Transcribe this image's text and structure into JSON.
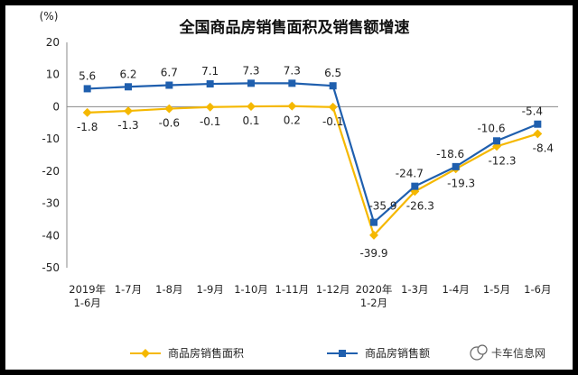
{
  "chart_data": {
    "type": "line",
    "title": "全国商品房销售面积及销售额增速",
    "ylabel": "(%)",
    "xlabel": "",
    "ylim": [
      -50,
      20
    ],
    "yticks": [
      20,
      10,
      0,
      -10,
      -20,
      -30,
      -40,
      -50
    ],
    "categories": [
      "2019年 1-6月",
      "1-7月",
      "1-8月",
      "1-9月",
      "1-10月",
      "1-11月",
      "1-12月",
      "2020年 1-2月",
      "1-3月",
      "1-4月",
      "1-5月",
      "1-6月"
    ],
    "category_lines": [
      [
        "2019年",
        "1-6月"
      ],
      [
        "1-7月"
      ],
      [
        "1-8月"
      ],
      [
        "1-9月"
      ],
      [
        "1-10月"
      ],
      [
        "1-11月"
      ],
      [
        "1-12月"
      ],
      [
        "2020年",
        "1-2月"
      ],
      [
        "1-3月"
      ],
      [
        "1-4月"
      ],
      [
        "1-5月"
      ],
      [
        "1-6月"
      ]
    ],
    "series": [
      {
        "name": "商品房销售面积",
        "color": "#f5b800",
        "marker": "diamond",
        "values": [
          -1.8,
          -1.3,
          -0.6,
          -0.1,
          0.1,
          0.2,
          -0.1,
          -39.9,
          -26.3,
          -19.3,
          -12.3,
          -8.4
        ],
        "labels": [
          "-1.8",
          "-1.3",
          "-0.6",
          "-0.1",
          "0.1",
          "0.2",
          "-0.1",
          "-39.9",
          "-26.3",
          "-19.3",
          "-12.3",
          "-8.4"
        ]
      },
      {
        "name": "商品房销售额",
        "color": "#1f5fae",
        "marker": "square",
        "values": [
          5.6,
          6.2,
          6.7,
          7.1,
          7.3,
          7.3,
          6.5,
          -35.9,
          -24.7,
          -18.6,
          -10.6,
          -5.4
        ],
        "labels": [
          "5.6",
          "6.2",
          "6.7",
          "7.1",
          "7.3",
          "7.3",
          "6.5",
          "-35.9",
          "-24.7",
          "-18.6",
          "-10.6",
          "-5.4"
        ]
      }
    ],
    "legend_position": "bottom",
    "grid": false
  },
  "watermark": "卡车信息网"
}
